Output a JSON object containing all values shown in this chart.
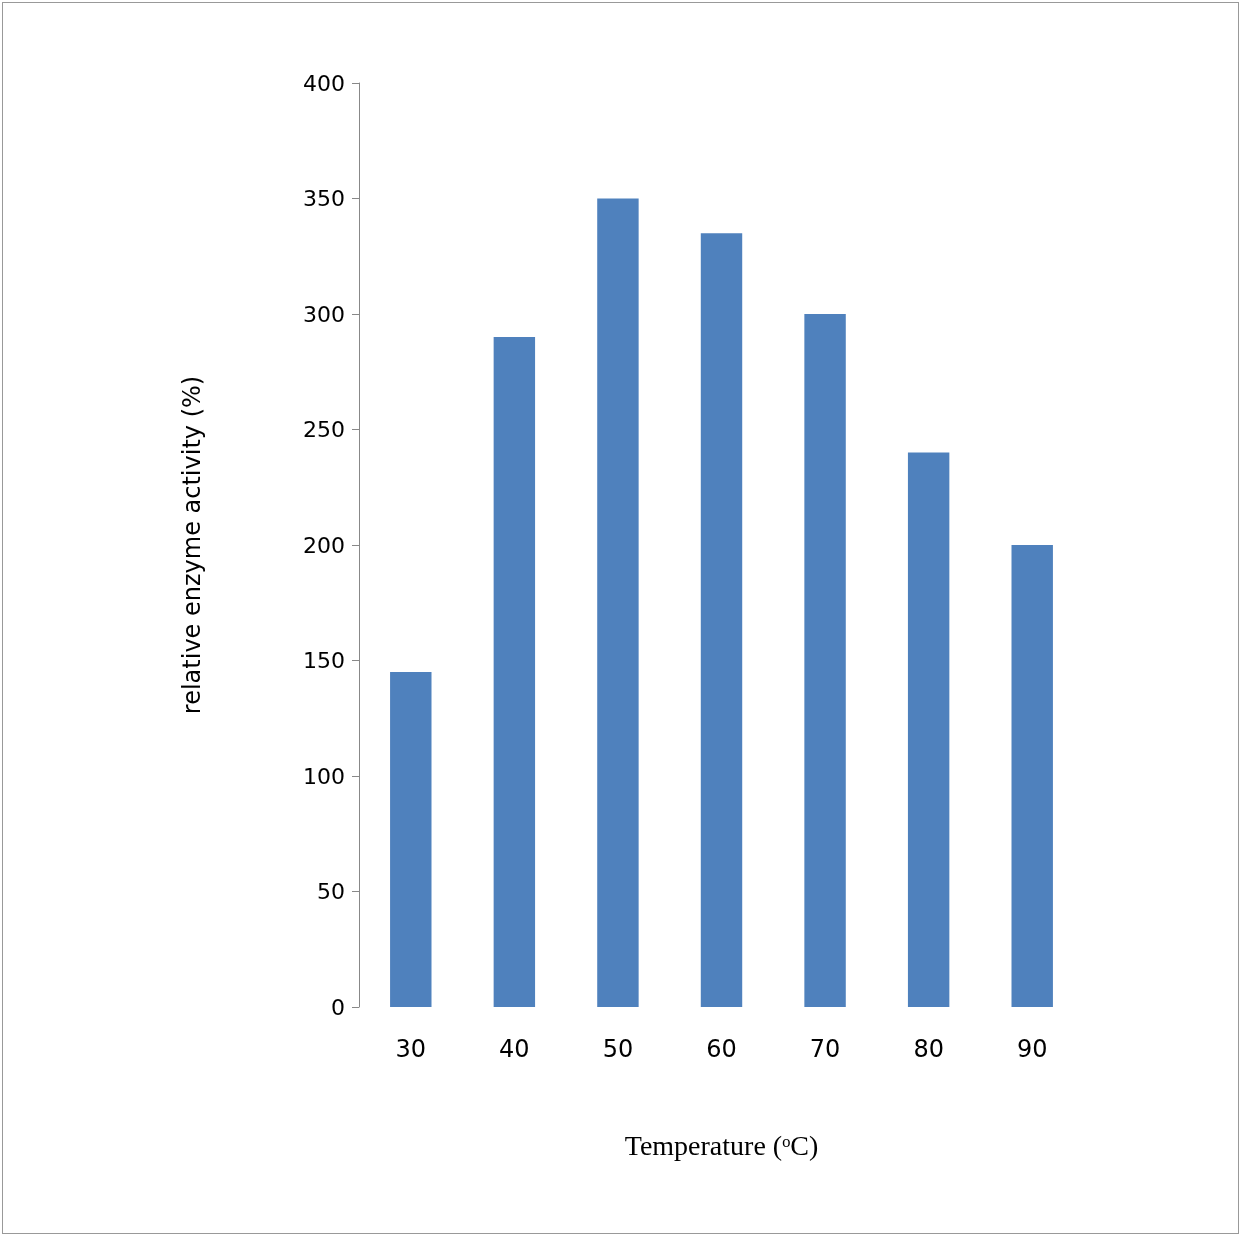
{
  "chart_data": {
    "type": "bar",
    "xlabel": "Temperature (ᵒC)",
    "ylabel": "relative enzyme activity (%)",
    "categories": [
      "30",
      "40",
      "50",
      "60",
      "70",
      "80",
      "90"
    ],
    "values": [
      145,
      290,
      350,
      335,
      300,
      240,
      200
    ],
    "color": "#4f81bd",
    "ylim": [
      0,
      400
    ],
    "yticks": [
      0,
      50,
      100,
      150,
      200,
      250,
      300,
      350,
      400
    ],
    "grid": false
  }
}
